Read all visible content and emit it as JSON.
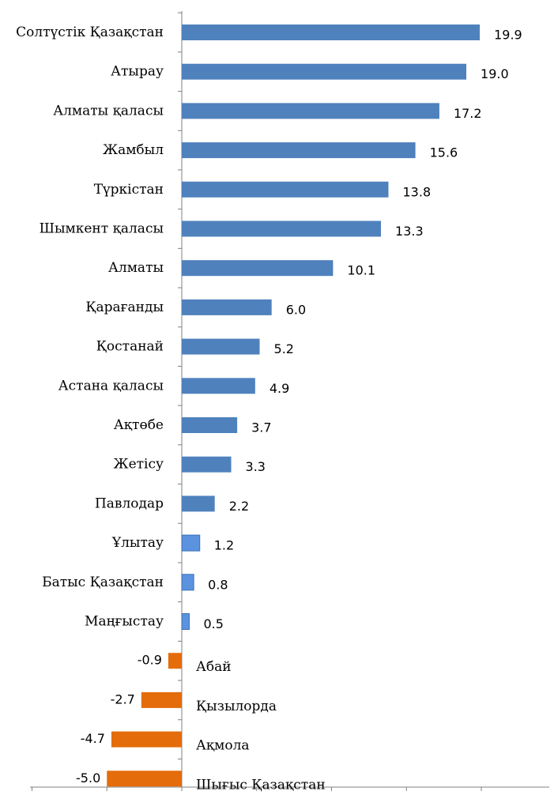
{
  "chart_data": {
    "type": "bar",
    "orientation": "horizontal",
    "title": "",
    "xlabel": "",
    "ylabel": "",
    "xlim": [
      -10,
      25
    ],
    "grid": false,
    "legend": "none",
    "categories": [
      "Солтүстік Қазақстан",
      "Атырау",
      "Алматы қаласы",
      "Жамбыл",
      "Түркістан",
      "Шымкент қаласы",
      "Алматы",
      "Қарағанды",
      "Қостанай",
      "Астана қаласы",
      "Ақтөбе",
      "Жетісу",
      "Павлодар",
      "Ұлытау",
      "Батыс Қазақстан",
      "Маңғыстау",
      "Абай",
      "Қызылорда",
      "Ақмола",
      "Шығыс Қазақстан"
    ],
    "values": [
      19.9,
      19.0,
      17.2,
      15.6,
      13.8,
      13.3,
      10.1,
      6.0,
      5.2,
      4.9,
      3.7,
      3.3,
      2.2,
      1.2,
      0.8,
      0.5,
      -0.9,
      -2.7,
      -4.7,
      -5.0
    ],
    "value_labels": [
      "19.9",
      "19.0",
      "17.2",
      "15.6",
      "13.8",
      "13.3",
      "10.1",
      "6.0",
      "5.2",
      "4.9",
      "3.7",
      "3.3",
      "2.2",
      "1.2",
      "0.8",
      "0.5",
      "-0.9",
      "-2.7",
      "-4.7",
      "-5.0"
    ],
    "colors": {
      "positive": "#4F81BD",
      "positive_light": "#5B93DE",
      "negative": "#E46C0A"
    },
    "light_bars": [
      "Ұлытау",
      "Батыс Қазақстан",
      "Маңғыстау"
    ]
  }
}
